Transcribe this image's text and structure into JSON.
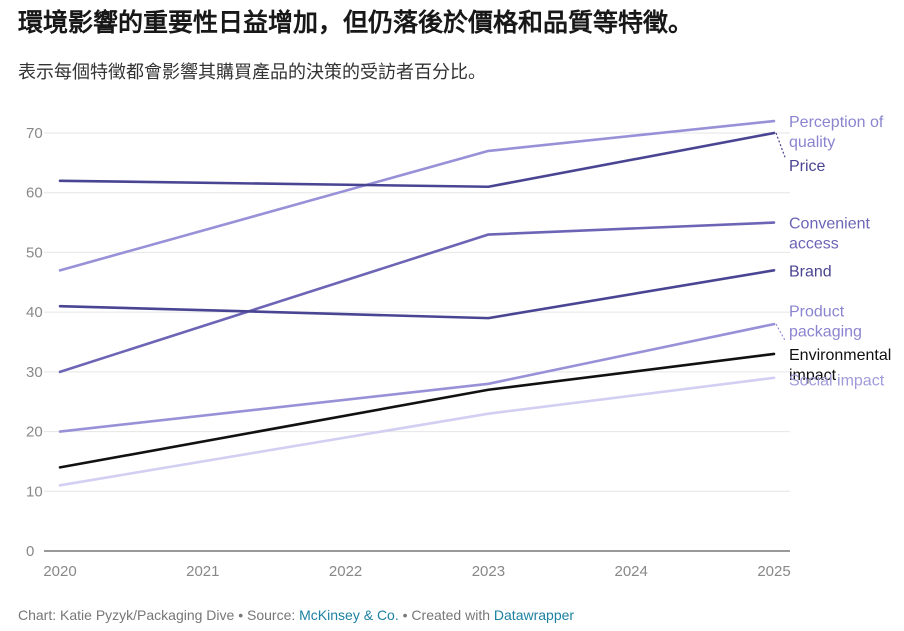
{
  "title": "環境影響的重要性日益增加，但仍落後於價格和品質等特徵。",
  "subtitle": "表示每個特徵都會影響其購買產品的決策的受訪者百分比。",
  "footer": {
    "prefix": "Chart: Katie Pyzyk/Packaging Dive • Source: ",
    "source": "McKinsey & Co.",
    "middle": " • Created with ",
    "tool": "Datawrapper"
  },
  "chart_data": {
    "type": "line",
    "title": "環境影響的重要性日益增加，但仍落後於價格和品質等特徵。",
    "subtitle": "表示每個特徵都會影響其購買產品的決策的受訪者百分比。",
    "x_ticks": [
      "2020",
      "2021",
      "2022",
      "2023",
      "2024",
      "2025"
    ],
    "x": [
      2020,
      2023,
      2025
    ],
    "xlim": [
      2020,
      2025
    ],
    "ylim": [
      0,
      70
    ],
    "y_ticks": [
      0,
      10,
      20,
      30,
      40,
      50,
      60,
      70
    ],
    "grid": true,
    "legend": "direct labels at line ends (right)",
    "series": [
      {
        "name": "Perception of quality",
        "label_lines": [
          "Perception of",
          "quality"
        ],
        "values": [
          47,
          67,
          72
        ],
        "color": "#9891d8",
        "label_color": "#8a84cf"
      },
      {
        "name": "Price",
        "label_lines": [
          "Price"
        ],
        "values": [
          62,
          61,
          70
        ],
        "color": "#4a4592",
        "label_color": "#4a4592"
      },
      {
        "name": "Convenient access",
        "label_lines": [
          "Convenient",
          "access"
        ],
        "values": [
          30,
          53,
          55
        ],
        "color": "#6c65b5",
        "label_color": "#6c65b5"
      },
      {
        "name": "Brand",
        "label_lines": [
          "Brand"
        ],
        "values": [
          41,
          39,
          47
        ],
        "color": "#4a4592",
        "label_color": "#4a4592"
      },
      {
        "name": "Product packaging",
        "label_lines": [
          "Product",
          "packaging"
        ],
        "values": [
          20,
          28,
          38
        ],
        "color": "#9891d8",
        "label_color": "#8a84cf"
      },
      {
        "name": "Environmental impact",
        "label_lines": [
          "Environmental",
          "impact"
        ],
        "values": [
          14,
          27,
          33
        ],
        "color": "#111111",
        "label_color": "#111111"
      },
      {
        "name": "Social impact",
        "label_lines": [
          "Social impact"
        ],
        "values": [
          11,
          23,
          29
        ],
        "color": "#d2cff2",
        "label_color": "#9f9bd9"
      }
    ]
  }
}
